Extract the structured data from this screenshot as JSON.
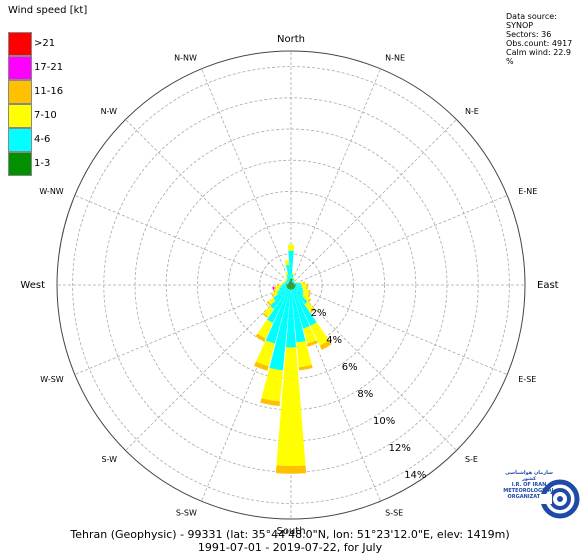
{
  "legend": {
    "title": "Wind speed [kt]",
    "items": [
      {
        "label": ">21",
        "color": "#ff0000"
      },
      {
        "label": "17-21",
        "color": "#ff00ff"
      },
      {
        "label": "11-16",
        "color": "#ffc000"
      },
      {
        "label": "7-10",
        "color": "#ffff00"
      },
      {
        "label": "4-6",
        "color": "#00ffff"
      },
      {
        "label": "1-3",
        "color": "#009000"
      }
    ]
  },
  "info": {
    "source": "Data source: SYNOP",
    "sectors": "Sectors: 36",
    "obs": "Obs.count: 4917",
    "calm": "Calm wind: 22.9 %"
  },
  "footer": {
    "line1": "Tehran (Geophysic) - 99331 (lat: 35°44'48.0\"N, lon: 51°23'12.0\"E, elev: 1419m)",
    "line2": "1991-07-01 - 2019-07-22, for July"
  },
  "logo": {
    "line1": "سازمان هواشناسی کشور",
    "line2": "I.R. OF IRAN",
    "line3": "METEOROLOGICAL",
    "line4": "ORGANIZATION"
  },
  "chart_data": {
    "type": "wind-rose",
    "directions": [
      "North",
      "N-NE",
      "N-E",
      "E-NE",
      "East",
      "E-SE",
      "S-E",
      "S-SE",
      "South",
      "S-SW",
      "S-W",
      "W-SW",
      "West",
      "W-NW",
      "N-W",
      "N-NW"
    ],
    "radial_ticks": [
      "2%",
      "4%",
      "6%",
      "8%",
      "10%",
      "12%",
      "14%"
    ],
    "radial_values": [
      2,
      4,
      6,
      8,
      10,
      12,
      14
    ],
    "rmax": 15,
    "speed_bins": [
      "1-3",
      "4-6",
      "7-10",
      "11-16",
      "17-21",
      ">21"
    ],
    "sectors": [
      {
        "dir": 0,
        "values": [
          0.4,
          1.8,
          0.4,
          0,
          0,
          0
        ]
      },
      {
        "dir": 10,
        "values": [
          0.4,
          0.3,
          0.1,
          0,
          0,
          0
        ]
      },
      {
        "dir": 20,
        "values": [
          0.2,
          0.2,
          0.1,
          0,
          0,
          0
        ]
      },
      {
        "dir": 30,
        "values": [
          0.2,
          0.2,
          0.05,
          0,
          0,
          0
        ]
      },
      {
        "dir": 40,
        "values": [
          0.2,
          0.1,
          0,
          0,
          0,
          0
        ]
      },
      {
        "dir": 50,
        "values": [
          0.2,
          0.1,
          0,
          0,
          0,
          0
        ]
      },
      {
        "dir": 60,
        "values": [
          0.2,
          0.1,
          0,
          0,
          0,
          0
        ]
      },
      {
        "dir": 70,
        "values": [
          0.2,
          0.2,
          0.1,
          0,
          0,
          0
        ]
      },
      {
        "dir": 80,
        "values": [
          0.3,
          0.3,
          0.2,
          0.1,
          0,
          0
        ]
      },
      {
        "dir": 90,
        "values": [
          0.3,
          0.4,
          0.3,
          0.1,
          0,
          0
        ]
      },
      {
        "dir": 100,
        "values": [
          0.3,
          0.4,
          0.3,
          0.1,
          0,
          0
        ]
      },
      {
        "dir": 110,
        "values": [
          0.3,
          0.5,
          0.4,
          0.1,
          0,
          0
        ]
      },
      {
        "dir": 120,
        "values": [
          0.3,
          0.6,
          0.4,
          0.1,
          0,
          0
        ]
      },
      {
        "dir": 130,
        "values": [
          0.3,
          0.7,
          0.5,
          0.1,
          0,
          0
        ]
      },
      {
        "dir": 140,
        "values": [
          0.3,
          1.2,
          0.6,
          0.1,
          0,
          0
        ]
      },
      {
        "dir": 150,
        "values": [
          0.3,
          2.6,
          1.4,
          0.3,
          0,
          0
        ]
      },
      {
        "dir": 160,
        "values": [
          0.3,
          2.6,
          1.0,
          0.2,
          0,
          0
        ]
      },
      {
        "dir": 170,
        "values": [
          0.3,
          3.4,
          1.6,
          0.2,
          0,
          0
        ]
      },
      {
        "dir": 180,
        "values": [
          0.3,
          3.7,
          7.6,
          0.5,
          0,
          0
        ]
      },
      {
        "dir": 190,
        "values": [
          0.3,
          5.2,
          2.0,
          0.3,
          0,
          0
        ]
      },
      {
        "dir": 200,
        "values": [
          0.3,
          3.6,
          1.5,
          0.3,
          0,
          0
        ]
      },
      {
        "dir": 210,
        "values": [
          0.3,
          2.4,
          1.1,
          0.2,
          0,
          0
        ]
      },
      {
        "dir": 220,
        "values": [
          0.3,
          1.6,
          0.6,
          0.1,
          0,
          0
        ]
      },
      {
        "dir": 230,
        "values": [
          0.3,
          1.1,
          0.4,
          0.1,
          0,
          0
        ]
      },
      {
        "dir": 240,
        "values": [
          0.3,
          0.7,
          0.3,
          0.1,
          0,
          0
        ]
      },
      {
        "dir": 250,
        "values": [
          0.3,
          0.5,
          0.3,
          0.1,
          0,
          0
        ]
      },
      {
        "dir": 260,
        "values": [
          0.3,
          0.4,
          0.3,
          0.1,
          0.1,
          0
        ]
      },
      {
        "dir": 270,
        "values": [
          0.3,
          0.3,
          0.2,
          0.1,
          0,
          0
        ]
      },
      {
        "dir": 280,
        "values": [
          0.3,
          0.2,
          0.1,
          0,
          0,
          0
        ]
      },
      {
        "dir": 290,
        "values": [
          0.2,
          0.2,
          0.1,
          0,
          0,
          0
        ]
      },
      {
        "dir": 300,
        "values": [
          0.2,
          0.2,
          0.1,
          0,
          0,
          0
        ]
      },
      {
        "dir": 310,
        "values": [
          0.2,
          0.2,
          0.1,
          0,
          0,
          0
        ]
      },
      {
        "dir": 320,
        "values": [
          0.2,
          0.2,
          0.1,
          0,
          0,
          0
        ]
      },
      {
        "dir": 330,
        "values": [
          0.2,
          0.3,
          0.1,
          0,
          0,
          0
        ]
      },
      {
        "dir": 340,
        "values": [
          0.3,
          0.4,
          0.2,
          0,
          0,
          0
        ]
      },
      {
        "dir": 350,
        "values": [
          0.3,
          1.0,
          0.3,
          0,
          0,
          0
        ]
      }
    ]
  }
}
